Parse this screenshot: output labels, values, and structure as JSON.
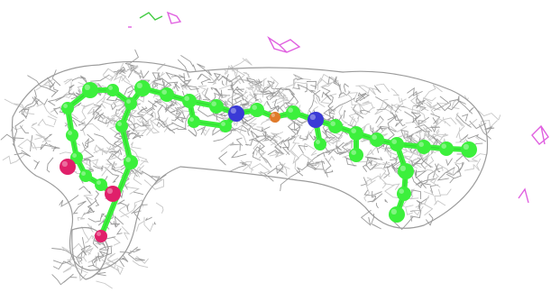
{
  "colors": {
    "background": "#ffffff",
    "mesh": "#9b9b9b",
    "mesh_light": "#c8c8c8",
    "carbon": "#3cf03c",
    "carbon_dark": "#1fa81f",
    "nitrogen": "#3a3ad6",
    "oxygen": "#e0206a",
    "iron": "#e07a2a",
    "magenta_fragment": "#e060e0",
    "green_fragment": "#44cc44"
  },
  "icons": {
    "molecule": "ligand-ball-and-stick",
    "density": "electron-density-mesh"
  }
}
